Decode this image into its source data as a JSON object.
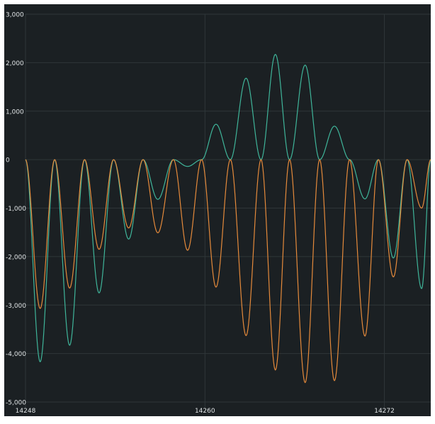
{
  "chart_data": {
    "type": "line",
    "title": "",
    "xlabel": "",
    "ylabel": "",
    "background": "#1b2023",
    "grid": true,
    "xlim": [
      14248,
      14275.1
    ],
    "ylim": [
      -5000,
      3000
    ],
    "x_ticks": [
      {
        "value": 14248,
        "label": "14248"
      },
      {
        "value": 14260,
        "label": "14260"
      },
      {
        "value": 14272,
        "label": "14272"
      }
    ],
    "y_ticks": [
      {
        "value": 3000,
        "label": "3,000"
      },
      {
        "value": 2000,
        "label": "2,000"
      },
      {
        "value": 1000,
        "label": "1,000"
      },
      {
        "value": 0,
        "label": "0"
      },
      {
        "value": -1000,
        "label": "-1,000"
      },
      {
        "value": -2000,
        "label": "-2,000"
      },
      {
        "value": -3000,
        "label": "-3,000"
      },
      {
        "value": -4000,
        "label": "-4,000"
      },
      {
        "value": -5000,
        "label": "-5,000"
      }
    ],
    "series": [
      {
        "color": "#3fb59a",
        "x": [
          14248,
          14248.98,
          14249.95,
          14250.95,
          14251.95,
          14252.92,
          14253.89,
          14254.9,
          14255.86,
          14256.85,
          14257.89,
          14258.84,
          14259.78,
          14260.74,
          14261.7,
          14262.75,
          14263.75,
          14264.71,
          14265.66,
          14266.7,
          14267.67,
          14268.66,
          14269.67,
          14270.7,
          14271.6,
          14272.6,
          14273.52,
          14274.49,
          14275.1
        ],
        "y": [
          0,
          -4170,
          0,
          -3830,
          0,
          -2750,
          0,
          -1640,
          0,
          -820,
          0,
          -140,
          0,
          730,
          0,
          1680,
          0,
          2170,
          0,
          1950,
          0,
          690,
          0,
          -810,
          0,
          -2030,
          0,
          -2660,
          0
        ]
      },
      {
        "color": "#e58a3b",
        "x": [
          14248,
          14248.98,
          14249.95,
          14250.95,
          14251.95,
          14252.92,
          14253.89,
          14254.9,
          14255.86,
          14256.85,
          14257.89,
          14258.84,
          14259.78,
          14260.74,
          14261.7,
          14262.75,
          14263.75,
          14264.71,
          14265.66,
          14266.7,
          14267.67,
          14268.66,
          14269.67,
          14270.7,
          14271.6,
          14272.6,
          14273.52,
          14274.49,
          14275.1
        ],
        "y": [
          0,
          -3070,
          0,
          -2650,
          0,
          -1850,
          0,
          -1410,
          0,
          -1510,
          0,
          -1870,
          0,
          -2630,
          0,
          -3630,
          0,
          -4340,
          0,
          -4600,
          0,
          -4560,
          0,
          -3640,
          0,
          -2420,
          0,
          -1000,
          0
        ]
      }
    ]
  }
}
